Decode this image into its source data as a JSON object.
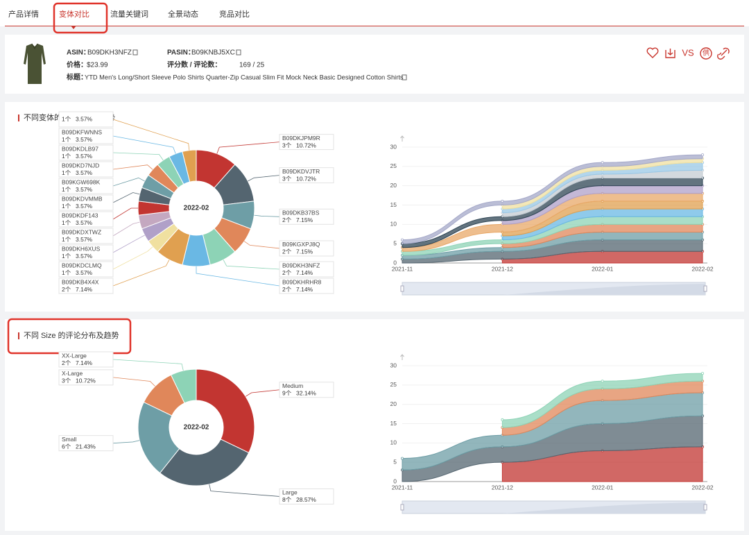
{
  "tabs": {
    "items": [
      "产品详情",
      "变体对比",
      "流量关键词",
      "全景动态",
      "竞品对比"
    ],
    "active": 1
  },
  "product": {
    "asin_label": "ASIN：",
    "asin": "B09DKH3NFZ",
    "pasin_label": "PASIN：",
    "pasin": "B09KNBJ5XC",
    "price_label": "价格：",
    "price": "$23.99",
    "rating_label": "评分数 / 评论数：",
    "rating": "169 / 25",
    "title_label": "标题：",
    "title": "YTD Men's Long/Short Sleeve Polo Shirts Quarter-Zip Casual Slim Fit Mock Neck Basic Designed Cotton Shirts",
    "actions": [
      "VS",
      "供"
    ]
  },
  "sections": [
    {
      "title": "不同变体的评论分布及趋势"
    },
    {
      "title": "不同 Size 的评论分布及趋势"
    }
  ],
  "chart_data": [
    {
      "type": "pie",
      "donut": true,
      "center_label": "2022-02",
      "categories": [
        "B09DKJPM9R",
        "B09DKDVJTR",
        "B09DKB37BS",
        "B09KGXPJ8Q",
        "B09DKH3NFZ",
        "B09DKHRHR8",
        "B09DKB4X4X",
        "B09DKDCLMQ",
        "B09DKH6XUS",
        "B09DKDXTWZ",
        "B09DKDF143",
        "B09DKDVMMB",
        "B09KGW698K",
        "B09DKD7NJD",
        "B09DKDLB97",
        "B09DKFWNNS",
        null
      ],
      "values": [
        3,
        3,
        2,
        2,
        2,
        2,
        2,
        1,
        1,
        1,
        1,
        1,
        1,
        1,
        1,
        1,
        1
      ],
      "value_labels": [
        "3个",
        "3个",
        "2个",
        "2个",
        "2个",
        "2个",
        "2个",
        "1个",
        "1个",
        "1个",
        "1个",
        "1个",
        "1个",
        "1个",
        "1个",
        "1个",
        "1个"
      ],
      "percents": [
        10.72,
        10.72,
        7.15,
        7.15,
        7.14,
        7.14,
        7.14,
        3.57,
        3.57,
        3.57,
        3.57,
        3.57,
        3.57,
        3.57,
        3.57,
        3.57,
        3.57
      ],
      "percent_labels": [
        "10.72%",
        "10.72%",
        "7.15%",
        "7.15%",
        "7.14%",
        "7.14%",
        "7.14%",
        "3.57%",
        "3.57%",
        "3.57%",
        "3.57%",
        "3.57%",
        "3.57%",
        "3.57%",
        "3.57%",
        "3.57%",
        "3.57%"
      ],
      "colors": [
        "#c23531",
        "#546570",
        "#6e9ea6",
        "#e0875a",
        "#8dd3b6",
        "#6ab8e4",
        "#e0a050",
        "#f0e0a0",
        "#b0a0c8",
        "#c4a8c0",
        "#c23531",
        "#546570",
        "#6e9ea6",
        "#e0875a",
        "#8dd3b6",
        "#6ab8e4",
        "#e0a050"
      ]
    },
    {
      "type": "area",
      "stacked": true,
      "smooth": true,
      "x": [
        "2021-11",
        "2021-12",
        "2022-01",
        "2022-02"
      ],
      "ylim": [
        0,
        30
      ],
      "yticks": [
        0,
        5,
        10,
        15,
        20,
        25,
        30
      ],
      "series": [
        {
          "color": "#c23531",
          "values": [
            null,
            1,
            3,
            3
          ]
        },
        {
          "color": "#546570",
          "values": [
            1,
            2,
            3,
            3
          ]
        },
        {
          "color": "#6e9ea6",
          "values": [
            1,
            1,
            2,
            2
          ]
        },
        {
          "color": "#e0875a",
          "values": [
            null,
            1,
            2,
            2
          ]
        },
        {
          "color": "#8dd3b6",
          "values": [
            1,
            1,
            2,
            2
          ]
        },
        {
          "color": "#6ab8e4",
          "values": [
            null,
            1,
            2,
            2
          ]
        },
        {
          "color": "#e0a050",
          "values": [
            null,
            1,
            2,
            2
          ]
        },
        {
          "color": "#e8a868",
          "values": [
            1,
            2,
            2,
            2
          ]
        },
        {
          "color": "#b0a0c8",
          "values": [
            null,
            1,
            2,
            2
          ]
        },
        {
          "color": "#2f4554",
          "values": [
            1,
            1,
            2,
            2
          ]
        },
        {
          "color": "#c4ccd3",
          "values": [
            null,
            1,
            1,
            2
          ]
        },
        {
          "color": "#9ac8e6",
          "values": [
            null,
            1,
            1,
            2
          ]
        },
        {
          "color": "#f0e0a0",
          "values": [
            null,
            1,
            1,
            1
          ]
        },
        {
          "color": "#a4a8c8",
          "values": [
            1,
            1,
            1,
            1
          ]
        }
      ]
    },
    {
      "type": "pie",
      "donut": true,
      "center_label": "2022-02",
      "categories": [
        "Medium",
        "Large",
        "Small",
        "X-Large",
        "XX-Large"
      ],
      "values": [
        9,
        8,
        6,
        3,
        2
      ],
      "value_labels": [
        "9个",
        "8个",
        "6个",
        "3个",
        "2个"
      ],
      "percents": [
        32.14,
        28.57,
        21.43,
        10.72,
        7.14
      ],
      "percent_labels": [
        "32.14%",
        "28.57%",
        "21.43%",
        "10.72%",
        "7.14%"
      ],
      "colors": [
        "#c23531",
        "#546570",
        "#6e9ea6",
        "#e0875a",
        "#8dd3b6"
      ]
    },
    {
      "type": "area",
      "stacked": true,
      "smooth": true,
      "x": [
        "2021-11",
        "2021-12",
        "2022-01",
        "2022-02"
      ],
      "ylim": [
        0,
        30
      ],
      "yticks": [
        0,
        5,
        10,
        15,
        20,
        25,
        30
      ],
      "series": [
        {
          "color": "#c23531",
          "values": [
            null,
            5,
            8,
            9
          ]
        },
        {
          "color": "#546570",
          "values": [
            3,
            4,
            7,
            8
          ]
        },
        {
          "color": "#6e9ea6",
          "values": [
            3,
            3,
            6,
            6
          ]
        },
        {
          "color": "#e0875a",
          "values": [
            null,
            2,
            3,
            3
          ]
        },
        {
          "color": "#8dd3b6",
          "values": [
            null,
            2,
            2,
            2
          ]
        }
      ]
    }
  ]
}
